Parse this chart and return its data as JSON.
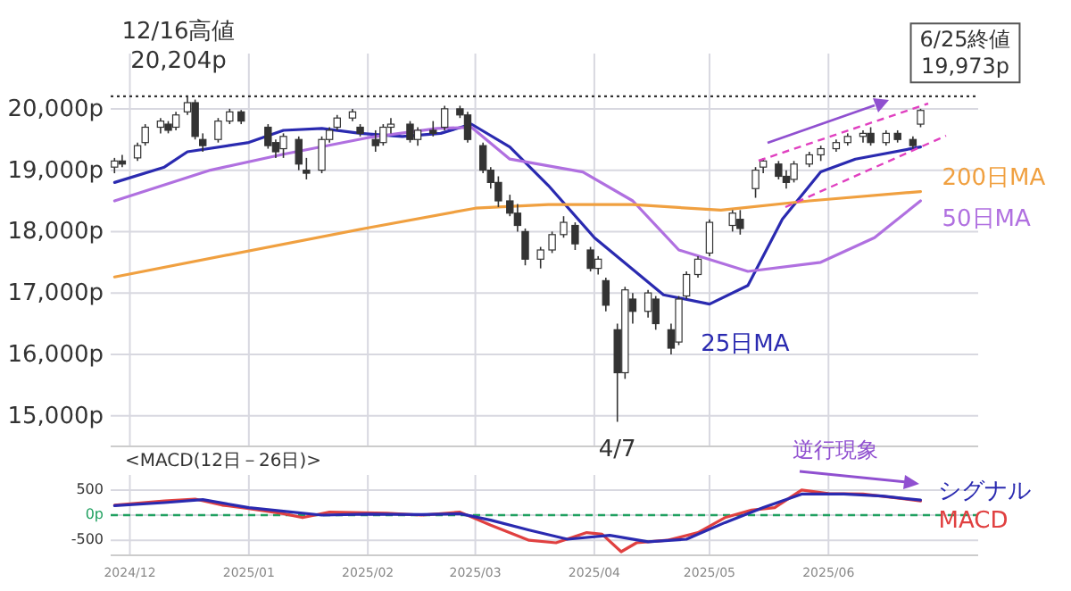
{
  "chart_data": [
    {
      "type": "candlestick",
      "grid": true,
      "tick_labels": "y",
      "xlim": [
        "2024-11-26",
        "2025-07-10"
      ],
      "ylim": [
        14500,
        20900
      ],
      "xticks": [
        {
          "value": "2024-12-01",
          "label": null
        },
        {
          "value": "2025-01-01",
          "label": null
        },
        {
          "value": "2025-02-01",
          "label": null
        },
        {
          "value": "2025-03-01",
          "label": null
        },
        {
          "value": "2025-04-01",
          "label": null
        },
        {
          "value": "2025-05-01",
          "label": null
        },
        {
          "value": "2025-06-01",
          "label": null
        }
      ],
      "yticks": [
        {
          "value": 15000,
          "label": "15,000p"
        },
        {
          "value": 16000,
          "label": "16,000p"
        },
        {
          "value": 17000,
          "label": "17,000p"
        },
        {
          "value": 18000,
          "label": "18,000p"
        },
        {
          "value": 19000,
          "label": "19,000p"
        },
        {
          "value": 20000,
          "label": "20,000p"
        }
      ],
      "x": [
        "2024-11-27",
        "2024-11-29",
        "2024-12-03",
        "2024-12-05",
        "2024-12-09",
        "2024-12-11",
        "2024-12-13",
        "2024-12-16",
        "2024-12-18",
        "2024-12-20",
        "2024-12-24",
        "2024-12-27",
        "2024-12-30",
        "2025-01-06",
        "2025-01-08",
        "2025-01-10",
        "2025-01-14",
        "2025-01-16",
        "2025-01-20",
        "2025-01-22",
        "2025-01-24",
        "2025-01-28",
        "2025-01-30",
        "2025-02-03",
        "2025-02-05",
        "2025-02-07",
        "2025-02-12",
        "2025-02-14",
        "2025-02-18",
        "2025-02-21",
        "2025-02-25",
        "2025-02-27",
        "2025-03-03",
        "2025-03-05",
        "2025-03-07",
        "2025-03-10",
        "2025-03-12",
        "2025-03-14",
        "2025-03-18",
        "2025-03-21",
        "2025-03-24",
        "2025-03-27",
        "2025-03-31",
        "2025-04-02",
        "2025-04-04",
        "2025-04-07",
        "2025-04-09",
        "2025-04-11",
        "2025-04-15",
        "2025-04-17",
        "2025-04-21",
        "2025-04-23",
        "2025-04-25",
        "2025-04-28",
        "2025-05-01",
        "2025-05-07",
        "2025-05-09",
        "2025-05-13",
        "2025-05-15",
        "2025-05-19",
        "2025-05-21",
        "2025-05-23",
        "2025-05-27",
        "2025-05-30",
        "2025-06-03",
        "2025-06-06",
        "2025-06-10",
        "2025-06-12",
        "2025-06-16",
        "2025-06-19",
        "2025-06-23",
        "2025-06-25"
      ],
      "ohlc": [
        [
          19050,
          19200,
          18950,
          19150
        ],
        [
          19150,
          19250,
          19050,
          19100
        ],
        [
          19200,
          19450,
          19150,
          19400
        ],
        [
          19450,
          19750,
          19400,
          19700
        ],
        [
          19700,
          19850,
          19600,
          19800
        ],
        [
          19750,
          19800,
          19600,
          19650
        ],
        [
          19700,
          19950,
          19650,
          19900
        ],
        [
          19950,
          20204,
          19900,
          20100
        ],
        [
          20100,
          20150,
          19500,
          19550
        ],
        [
          19500,
          19600,
          19300,
          19400
        ],
        [
          19500,
          19850,
          19450,
          19800
        ],
        [
          19800,
          20000,
          19750,
          19950
        ],
        [
          19950,
          19980,
          19750,
          19800
        ],
        [
          19700,
          19750,
          19350,
          19400
        ],
        [
          19450,
          19500,
          19200,
          19300
        ],
        [
          19350,
          19600,
          19200,
          19550
        ],
        [
          19500,
          19550,
          19000,
          19100
        ],
        [
          19000,
          19200,
          18850,
          18950
        ],
        [
          19000,
          19550,
          18950,
          19500
        ],
        [
          19500,
          19700,
          19450,
          19650
        ],
        [
          19700,
          19900,
          19650,
          19850
        ],
        [
          19850,
          20000,
          19800,
          19950
        ],
        [
          19700,
          19750,
          19550,
          19600
        ],
        [
          19500,
          19650,
          19300,
          19400
        ],
        [
          19450,
          19750,
          19400,
          19700
        ],
        [
          19700,
          19850,
          19600,
          19750
        ],
        [
          19750,
          19800,
          19450,
          19500
        ],
        [
          19500,
          19700,
          19400,
          19650
        ],
        [
          19650,
          19800,
          19550,
          19600
        ],
        [
          19700,
          20050,
          19650,
          20000
        ],
        [
          20000,
          20050,
          19850,
          19900
        ],
        [
          19900,
          19950,
          19450,
          19500
        ],
        [
          19400,
          19450,
          18950,
          19000
        ],
        [
          19000,
          19050,
          18700,
          18800
        ],
        [
          18800,
          18900,
          18400,
          18500
        ],
        [
          18500,
          18600,
          18250,
          18300
        ],
        [
          18300,
          18450,
          18000,
          18100
        ],
        [
          18000,
          18050,
          17450,
          17550
        ],
        [
          17550,
          17750,
          17400,
          17700
        ],
        [
          17700,
          18000,
          17650,
          17950
        ],
        [
          17950,
          18250,
          17900,
          18150
        ],
        [
          18100,
          18150,
          17700,
          17800
        ],
        [
          17700,
          17750,
          17350,
          17400
        ],
        [
          17400,
          17600,
          17300,
          17550
        ],
        [
          17200,
          17250,
          16700,
          16800
        ],
        [
          16400,
          16500,
          14900,
          15700
        ],
        [
          15700,
          17100,
          15600,
          17050
        ],
        [
          16900,
          17000,
          16500,
          16700
        ],
        [
          16700,
          17050,
          16600,
          17000
        ],
        [
          16900,
          16950,
          16400,
          16500
        ],
        [
          16400,
          16500,
          16000,
          16100
        ],
        [
          16200,
          16950,
          16150,
          16900
        ],
        [
          16950,
          17350,
          16900,
          17300
        ],
        [
          17300,
          17600,
          17250,
          17550
        ],
        [
          17650,
          18200,
          17600,
          18150
        ],
        [
          18100,
          18350,
          18000,
          18300
        ],
        [
          18200,
          18350,
          17950,
          18050
        ],
        [
          18700,
          19050,
          18550,
          19000
        ],
        [
          19050,
          19200,
          18950,
          19150
        ],
        [
          19100,
          19150,
          18850,
          18900
        ],
        [
          18900,
          19000,
          18700,
          18800
        ],
        [
          18850,
          19150,
          18800,
          19100
        ],
        [
          19100,
          19300,
          19050,
          19250
        ],
        [
          19250,
          19400,
          19150,
          19350
        ],
        [
          19350,
          19500,
          19300,
          19450
        ],
        [
          19450,
          19600,
          19400,
          19550
        ],
        [
          19550,
          19650,
          19450,
          19600
        ],
        [
          19600,
          19700,
          19400,
          19450
        ],
        [
          19450,
          19650,
          19400,
          19600
        ],
        [
          19600,
          19650,
          19450,
          19500
        ],
        [
          19500,
          19550,
          19350,
          19400
        ],
        [
          19750,
          20000,
          19700,
          19973
        ]
      ],
      "series": [
        {
          "type": "line",
          "name": "25日MA",
          "color": "#2a2ab0",
          "x": [
            "2024-11-27",
            "2024-12-10",
            "2024-12-16",
            "2025-01-01",
            "2025-01-10",
            "2025-01-20",
            "2025-01-30",
            "2025-02-10",
            "2025-02-20",
            "2025-02-28",
            "2025-03-10",
            "2025-03-20",
            "2025-04-01",
            "2025-04-19",
            "2025-05-01",
            "2025-05-11",
            "2025-05-20",
            "2025-05-30",
            "2025-06-08",
            "2025-06-25"
          ],
          "values": [
            18800,
            19050,
            19300,
            19450,
            19650,
            19680,
            19600,
            19550,
            19600,
            19750,
            19380,
            18750,
            17900,
            16970,
            16820,
            17120,
            18200,
            18970,
            19180,
            19380
          ]
        },
        {
          "type": "line",
          "name": "50日MA",
          "color": "#b070e0",
          "x": [
            "2024-11-27",
            "2024-12-22",
            "2025-01-10",
            "2025-02-01",
            "2025-02-19",
            "2025-02-28",
            "2025-03-10",
            "2025-03-29",
            "2025-04-11",
            "2025-04-23",
            "2025-05-11",
            "2025-05-30",
            "2025-06-13",
            "2025-06-25"
          ],
          "values": [
            18500,
            19000,
            19260,
            19530,
            19680,
            19700,
            19180,
            18970,
            18500,
            17700,
            17350,
            17500,
            17900,
            18500
          ]
        },
        {
          "type": "line",
          "name": "200日MA",
          "color": "#f0a040",
          "x": [
            "2024-11-27",
            "2025-02-01",
            "2025-03-01",
            "2025-03-20",
            "2025-04-11",
            "2025-05-04",
            "2025-05-27",
            "2025-06-25"
          ],
          "values": [
            17260,
            18060,
            18380,
            18440,
            18440,
            18350,
            18500,
            18650
          ]
        }
      ],
      "ref_lines": [
        {
          "axis": "y",
          "value": 20204,
          "color": "#333333",
          "line_style": "dotted"
        }
      ],
      "annotations": [
        {
          "text": "12/16高値\n20,204p",
          "x": "2024-12-16",
          "y": 20204
        },
        {
          "text": "6/25終値\n19,973p",
          "x": "2025-06-25",
          "y": 19973
        },
        {
          "text": "4/7",
          "x": "2025-04-07",
          "y": 14900
        }
      ]
    },
    {
      "type": "line",
      "title": "<MACD(12日－26日)>",
      "grid": true,
      "xlim": [
        "2024-11-26",
        "2025-07-10"
      ],
      "ylim": [
        -800,
        800
      ],
      "xticks": [
        {
          "value": "2024-12-01",
          "label": "2024/12"
        },
        {
          "value": "2025-01-01",
          "label": "2025/01"
        },
        {
          "value": "2025-02-01",
          "label": "2025/02"
        },
        {
          "value": "2025-03-01",
          "label": "2025/03"
        },
        {
          "value": "2025-04-01",
          "label": "2025/04"
        },
        {
          "value": "2025-05-01",
          "label": "2025/05"
        },
        {
          "value": "2025-06-01",
          "label": "2025/06"
        }
      ],
      "yticks": [
        -500,
        {
          "value": 0,
          "label": "0p"
        },
        500
      ],
      "series": [
        {
          "name": "MACD",
          "color": "#e04040",
          "x": [
            "2024-11-27",
            "2024-12-10",
            "2024-12-18",
            "2024-12-25",
            "2025-01-01",
            "2025-01-10",
            "2025-01-15",
            "2025-01-22",
            "2025-02-06",
            "2025-02-15",
            "2025-02-25",
            "2025-03-05",
            "2025-03-15",
            "2025-03-22",
            "2025-03-30",
            "2025-04-03",
            "2025-04-08",
            "2025-04-12",
            "2025-04-20",
            "2025-04-28",
            "2025-05-05",
            "2025-05-12",
            "2025-05-18",
            "2025-05-25",
            "2025-06-01",
            "2025-06-10",
            "2025-06-20",
            "2025-06-25"
          ],
          "values": [
            200,
            280,
            320,
            200,
            130,
            30,
            -50,
            60,
            40,
            0,
            60,
            -200,
            -500,
            -550,
            -350,
            -380,
            -730,
            -550,
            -500,
            -350,
            -50,
            100,
            150,
            500,
            430,
            420,
            330,
            280
          ]
        },
        {
          "name": "シグナル",
          "color": "#2a2ab0",
          "x": [
            "2024-11-27",
            "2024-12-10",
            "2024-12-20",
            "2025-01-01",
            "2025-01-10",
            "2025-01-20",
            "2025-02-01",
            "2025-02-15",
            "2025-02-25",
            "2025-03-05",
            "2025-03-15",
            "2025-03-25",
            "2025-04-05",
            "2025-04-15",
            "2025-04-25",
            "2025-05-05",
            "2025-05-15",
            "2025-05-25",
            "2025-06-05",
            "2025-06-15",
            "2025-06-25"
          ],
          "values": [
            190,
            250,
            310,
            150,
            80,
            0,
            20,
            10,
            30,
            -100,
            -300,
            -480,
            -400,
            -530,
            -480,
            -150,
            150,
            420,
            420,
            380,
            300
          ]
        }
      ],
      "ref_lines": [
        {
          "axis": "y",
          "value": 0,
          "color": "#20a060",
          "line_style": "dashed"
        }
      ],
      "annotations": [
        "逆行現象"
      ]
    }
  ]
}
